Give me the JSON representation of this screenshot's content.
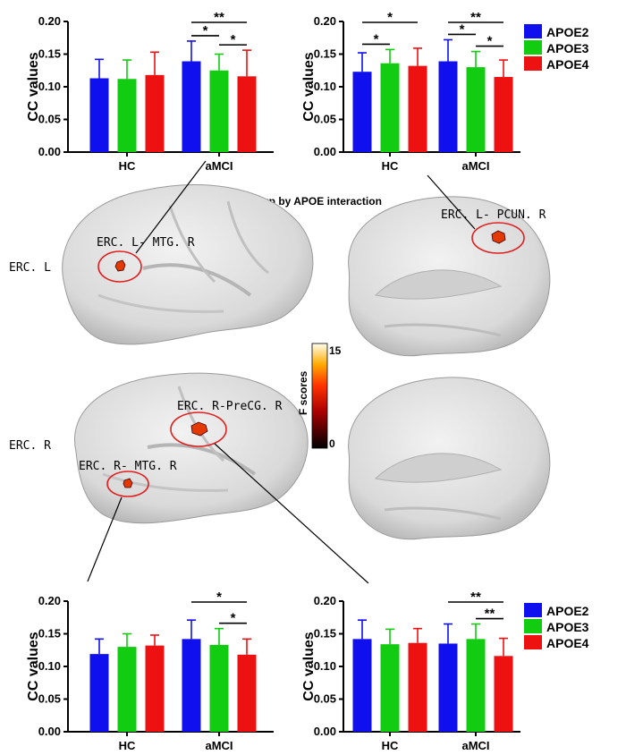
{
  "colors": {
    "APOE2": "#1010ee",
    "APOE3": "#11cc11",
    "APOE4": "#ee1111"
  },
  "legend_top": [
    "APOE2",
    "APOE3",
    "APOE4"
  ],
  "legend_bottom": [
    "APOE2",
    "APOE3",
    "APOE4"
  ],
  "center_title": "Group by APOE interaction",
  "side_labels": {
    "left_hemi": "ERC. L",
    "right_hemi": "ERC. R"
  },
  "roi_labels": {
    "l_mtg": "ERC. L- MTG. R",
    "l_pcun": "ERC. L- PCUN. R",
    "r_precg": "ERC. R-PreCG. R",
    "r_mtg": "ERC. R- MTG. R"
  },
  "colorbar": {
    "label": "F scores",
    "max_label": "15",
    "min_label": "0",
    "max": 15,
    "min": 0
  },
  "chart_data": [
    {
      "type": "bar",
      "ylabel": "CC values",
      "ylim": [
        0,
        0.2
      ],
      "yticks": [
        "0.00",
        "0.05",
        "0.10",
        "0.15",
        "0.20"
      ],
      "categories": [
        "HC",
        "aMCI"
      ],
      "series": [
        {
          "name": "APOE2",
          "values": [
            0.113,
            0.139
          ],
          "errors": [
            0.029,
            0.031
          ]
        },
        {
          "name": "APOE3",
          "values": [
            0.112,
            0.125
          ],
          "errors": [
            0.029,
            0.025
          ]
        },
        {
          "name": "APOE4",
          "values": [
            0.118,
            0.116
          ],
          "errors": [
            0.035,
            0.04
          ]
        }
      ],
      "significance": [
        {
          "category": 1,
          "from": 0,
          "to": 1,
          "label": "*",
          "level": 1
        },
        {
          "category": 1,
          "from": 1,
          "to": 2,
          "label": "*",
          "level": 1
        },
        {
          "category": 1,
          "from": 0,
          "to": 2,
          "label": "**",
          "level": 2
        }
      ]
    },
    {
      "type": "bar",
      "ylabel": "CC values",
      "ylim": [
        0,
        0.2
      ],
      "yticks": [
        "0.00",
        "0.05",
        "0.10",
        "0.15",
        "0.20"
      ],
      "categories": [
        "HC",
        "aMCI"
      ],
      "series": [
        {
          "name": "APOE2",
          "values": [
            0.123,
            0.139
          ],
          "errors": [
            0.029,
            0.033
          ]
        },
        {
          "name": "APOE3",
          "values": [
            0.136,
            0.13
          ],
          "errors": [
            0.021,
            0.024
          ]
        },
        {
          "name": "APOE4",
          "values": [
            0.132,
            0.115
          ],
          "errors": [
            0.027,
            0.026
          ]
        }
      ],
      "significance": [
        {
          "category": 0,
          "from": 0,
          "to": 1,
          "label": "*",
          "level": 1
        },
        {
          "category": 0,
          "from": 0,
          "to": 2,
          "label": "*",
          "level": 2
        },
        {
          "category": 1,
          "from": 0,
          "to": 1,
          "label": "*",
          "level": 1
        },
        {
          "category": 1,
          "from": 1,
          "to": 2,
          "label": "*",
          "level": 1
        },
        {
          "category": 1,
          "from": 0,
          "to": 2,
          "label": "**",
          "level": 2
        }
      ]
    },
    {
      "type": "bar",
      "ylabel": "CC values",
      "ylim": [
        0,
        0.2
      ],
      "yticks": [
        "0.00",
        "0.05",
        "0.10",
        "0.15",
        "0.20"
      ],
      "categories": [
        "HC",
        "aMCI"
      ],
      "series": [
        {
          "name": "APOE2",
          "values": [
            0.119,
            0.142
          ],
          "errors": [
            0.023,
            0.029
          ]
        },
        {
          "name": "APOE3",
          "values": [
            0.13,
            0.133
          ],
          "errors": [
            0.02,
            0.025
          ]
        },
        {
          "name": "APOE4",
          "values": [
            0.132,
            0.118
          ],
          "errors": [
            0.016,
            0.024
          ]
        }
      ],
      "significance": [
        {
          "category": 1,
          "from": 1,
          "to": 2,
          "label": "*",
          "level": 1
        },
        {
          "category": 1,
          "from": 0,
          "to": 2,
          "label": "*",
          "level": 2
        }
      ]
    },
    {
      "type": "bar",
      "ylabel": "CC values",
      "ylim": [
        0,
        0.2
      ],
      "yticks": [
        "0.00",
        "0.05",
        "0.10",
        "0.15",
        "0.20"
      ],
      "categories": [
        "HC",
        "aMCI"
      ],
      "series": [
        {
          "name": "APOE2",
          "values": [
            0.142,
            0.135
          ],
          "errors": [
            0.029,
            0.03
          ]
        },
        {
          "name": "APOE3",
          "values": [
            0.134,
            0.142
          ],
          "errors": [
            0.023,
            0.023
          ]
        },
        {
          "name": "APOE4",
          "values": [
            0.136,
            0.116
          ],
          "errors": [
            0.022,
            0.027
          ]
        }
      ],
      "significance": [
        {
          "category": 1,
          "from": 1,
          "to": 2,
          "label": "**",
          "level": 1
        },
        {
          "category": 1,
          "from": 0,
          "to": 2,
          "label": "**",
          "level": 2
        }
      ]
    }
  ]
}
